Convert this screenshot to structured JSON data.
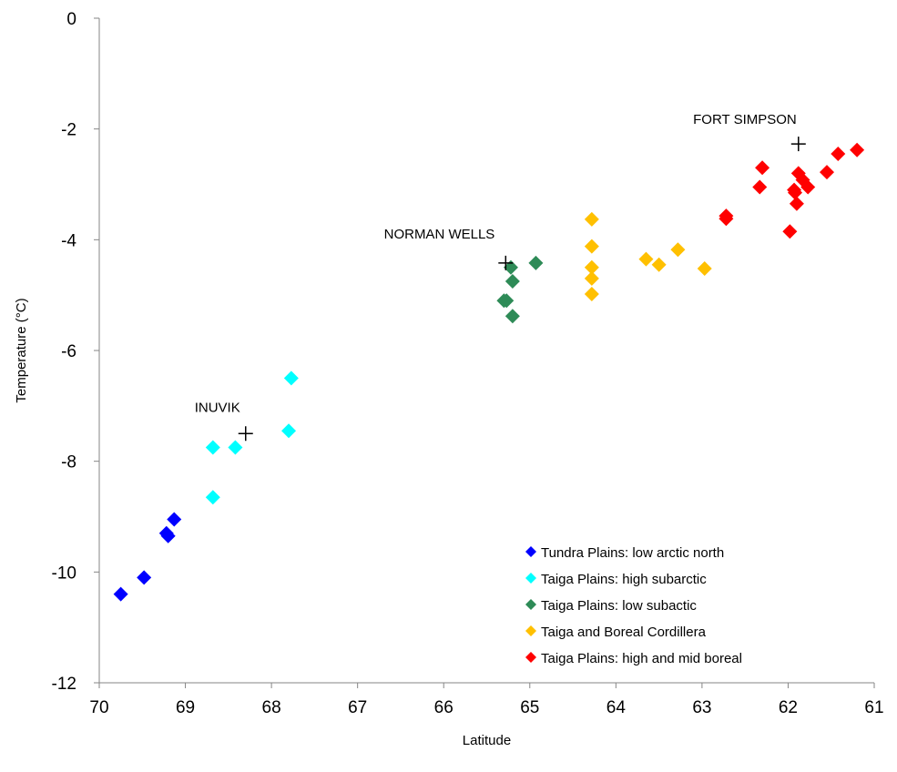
{
  "chart_data": {
    "type": "scatter",
    "title": "",
    "xlabel": "Latitude",
    "ylabel": "Temperature (°C)",
    "xlim": [
      70,
      61
    ],
    "ylim": [
      -12,
      0
    ],
    "x_reversed": true,
    "x_ticks": [
      70,
      69,
      68,
      67,
      66,
      65,
      64,
      63,
      62,
      61
    ],
    "y_ticks": [
      0,
      -2,
      -4,
      -6,
      -8,
      -10,
      -12
    ],
    "grid": false,
    "legend_position": "bottom-right",
    "series": [
      {
        "name": "Tundra Plains: low arctic north",
        "color": "#0000FF",
        "marker": "diamond",
        "points": [
          [
            69.75,
            -10.4
          ],
          [
            69.48,
            -10.1
          ],
          [
            69.22,
            -9.3
          ],
          [
            69.2,
            -9.35
          ],
          [
            69.13,
            -9.05
          ]
        ]
      },
      {
        "name": "Taiga Plains: high subarctic",
        "color": "#00FFFF",
        "marker": "diamond",
        "points": [
          [
            68.68,
            -7.75
          ],
          [
            68.68,
            -8.65
          ],
          [
            68.42,
            -7.75
          ],
          [
            67.8,
            -7.45
          ],
          [
            67.77,
            -6.5
          ]
        ]
      },
      {
        "name": "Taiga Plains: low subactic",
        "color": "#2E8B57",
        "marker": "diamond",
        "points": [
          [
            65.3,
            -5.1
          ],
          [
            65.27,
            -5.1
          ],
          [
            65.22,
            -4.5
          ],
          [
            65.2,
            -4.75
          ],
          [
            65.2,
            -5.38
          ],
          [
            64.93,
            -4.42
          ]
        ]
      },
      {
        "name": "Taiga and Boreal Cordillera",
        "color": "#FFC000",
        "marker": "diamond",
        "points": [
          [
            64.28,
            -3.63
          ],
          [
            64.28,
            -4.12
          ],
          [
            64.28,
            -4.5
          ],
          [
            64.28,
            -4.7
          ],
          [
            64.28,
            -4.98
          ],
          [
            63.65,
            -4.35
          ],
          [
            63.5,
            -4.45
          ],
          [
            63.28,
            -4.18
          ],
          [
            62.97,
            -4.52
          ]
        ]
      },
      {
        "name": "Taiga Plains: high and mid boreal",
        "color": "#FF0000",
        "marker": "diamond",
        "points": [
          [
            62.72,
            -3.57
          ],
          [
            62.72,
            -3.62
          ],
          [
            62.33,
            -3.05
          ],
          [
            62.3,
            -2.7
          ],
          [
            61.98,
            -3.85
          ],
          [
            61.93,
            -3.1
          ],
          [
            61.92,
            -3.15
          ],
          [
            61.9,
            -3.35
          ],
          [
            61.88,
            -2.8
          ],
          [
            61.83,
            -2.92
          ],
          [
            61.77,
            -3.05
          ],
          [
            61.55,
            -2.78
          ],
          [
            61.42,
            -2.45
          ],
          [
            61.2,
            -2.38
          ]
        ]
      }
    ],
    "annotations": [
      {
        "text": "FORT SIMPSON",
        "x": 61.88,
        "y": -2.27
      },
      {
        "text": "NORMAN WELLS",
        "x": 65.28,
        "y": -4.42
      },
      {
        "text": "INUVIK",
        "x": 68.3,
        "y": -7.5
      }
    ]
  }
}
